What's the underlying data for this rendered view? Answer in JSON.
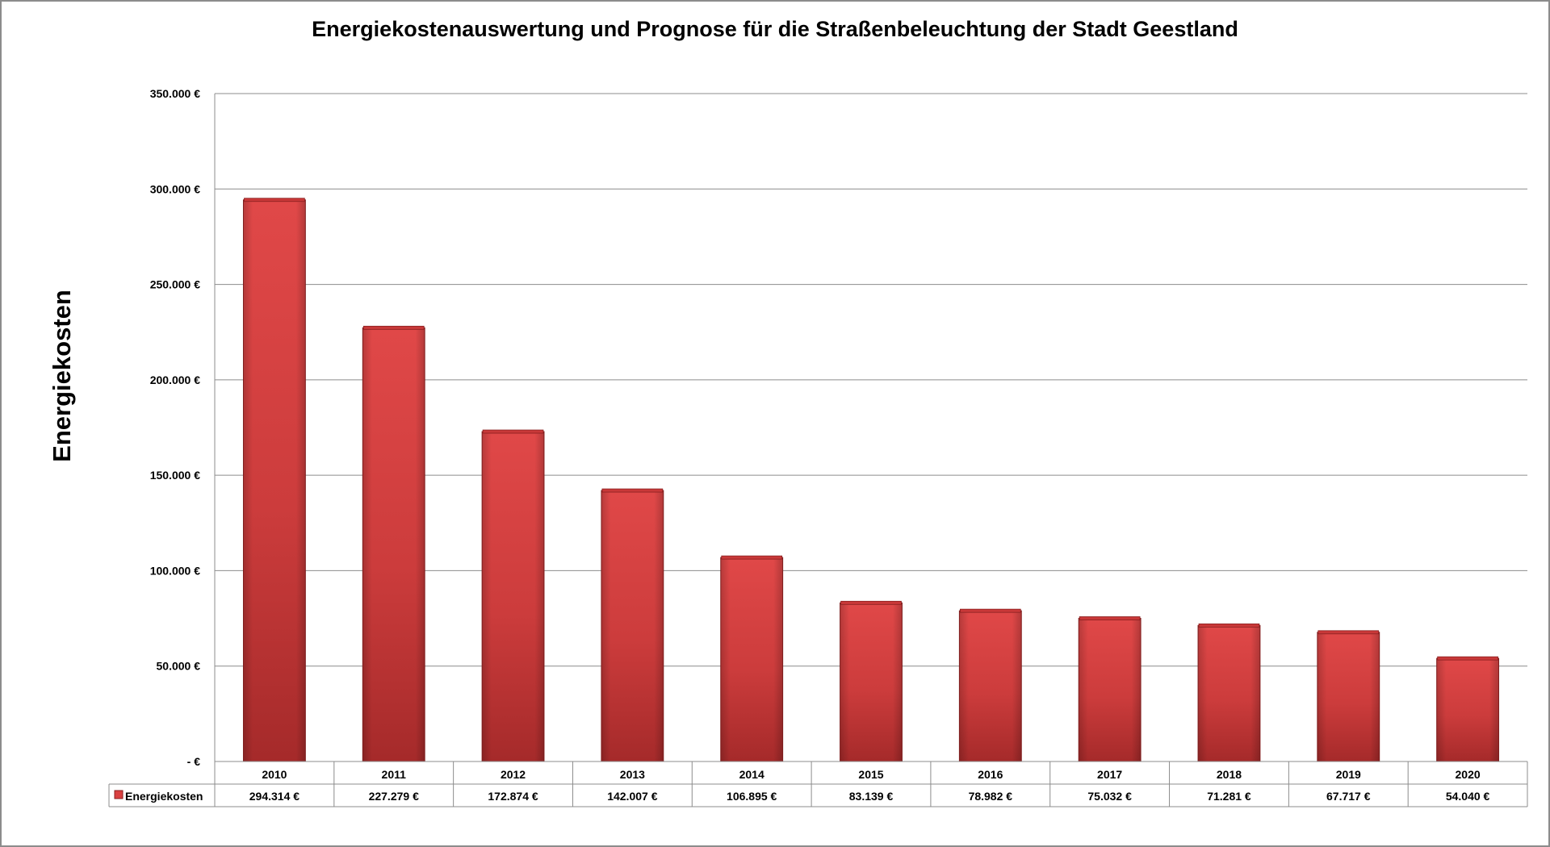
{
  "chart_data": {
    "type": "bar",
    "title": "Energiekostenauswertung  und Prognose für die Straßenbeleuchtung der Stadt Geestland",
    "xlabel": "",
    "ylabel": "Energiekosten",
    "ylim": [
      0,
      350000
    ],
    "yticks": [
      0,
      50000,
      100000,
      150000,
      200000,
      250000,
      300000,
      350000
    ],
    "ytick_labels": [
      "-  €",
      "50.000 €",
      "100.000 €",
      "150.000 €",
      "200.000 €",
      "250.000 €",
      "300.000 €",
      "350.000 €"
    ],
    "grid": true,
    "legend_placement": "data-table-left",
    "categories": [
      "2010",
      "2011",
      "2012",
      "2013",
      "2014",
      "2015",
      "2016",
      "2017",
      "2018",
      "2019",
      "2020"
    ],
    "series": [
      {
        "name": "Energiekosten",
        "color": "#d94040",
        "values": [
          294314,
          227279,
          172874,
          142007,
          106895,
          83139,
          78982,
          75032,
          71281,
          67717,
          54040
        ],
        "value_labels": [
          "294.314 €",
          "227.279 €",
          "172.874 €",
          "142.007 €",
          "106.895 €",
          "83.139 €",
          "78.982 €",
          "75.032 €",
          "71.281 €",
          "67.717 €",
          "54.040 €"
        ]
      }
    ]
  }
}
